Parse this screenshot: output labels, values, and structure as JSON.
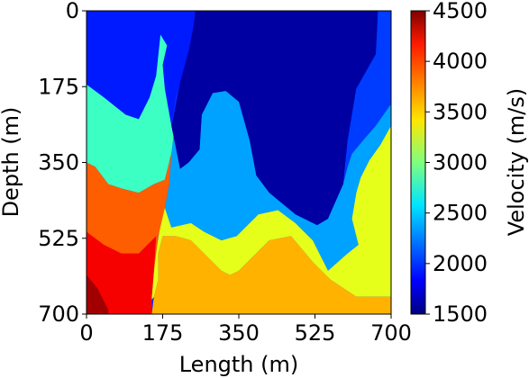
{
  "chart_data": {
    "type": "heatmap",
    "title": "",
    "xlabel": "Length (m)",
    "ylabel": "Depth (m)",
    "xlim": [
      0,
      700
    ],
    "ylim": [
      0,
      700
    ],
    "y_inverted": true,
    "xticks": [
      0,
      175,
      350,
      525,
      700
    ],
    "yticks": [
      0,
      175,
      350,
      525,
      700
    ],
    "xtick_labels": [
      "0",
      "175",
      "350",
      "525",
      "700"
    ],
    "ytick_labels": [
      "0",
      "175",
      "350",
      "525",
      "700"
    ],
    "colorbar": {
      "label": "Velocity (m/s)",
      "range": [
        1500,
        4500
      ],
      "ticks": [
        1500,
        2000,
        2500,
        3000,
        3500,
        4000,
        4500
      ],
      "tick_labels": [
        "1500",
        "2000",
        "2500",
        "3000",
        "3500",
        "4000",
        "4500"
      ],
      "colormap": "jet"
    },
    "layers": [
      {
        "velocity": 1600,
        "region": [
          [
            250,
            0
          ],
          [
            670,
            0
          ],
          [
            665,
            100
          ],
          [
            620,
            180
          ],
          [
            600,
            300
          ],
          [
            590,
            400
          ],
          [
            555,
            480
          ],
          [
            530,
            495
          ],
          [
            480,
            470
          ],
          [
            420,
            420
          ],
          [
            390,
            380
          ],
          [
            375,
            300
          ],
          [
            350,
            210
          ],
          [
            320,
            185
          ],
          [
            290,
            190
          ],
          [
            265,
            240
          ],
          [
            260,
            320
          ],
          [
            235,
            350
          ],
          [
            215,
            365
          ],
          [
            190,
            345
          ],
          [
            195,
            270
          ],
          [
            215,
            165
          ],
          [
            235,
            90
          ],
          [
            245,
            40
          ]
        ]
      },
      {
        "velocity": 1950,
        "region": [
          [
            0,
            0
          ],
          [
            250,
            0
          ],
          [
            245,
            40
          ],
          [
            235,
            90
          ],
          [
            215,
            165
          ],
          [
            205,
            200
          ],
          [
            195,
            265
          ],
          [
            180,
            180
          ],
          [
            175,
            125
          ],
          [
            185,
            80
          ],
          [
            170,
            55
          ],
          [
            160,
            150
          ],
          [
            145,
            200
          ],
          [
            120,
            250
          ],
          [
            90,
            240
          ],
          [
            40,
            200
          ],
          [
            0,
            170
          ]
        ]
      },
      {
        "velocity": 2050,
        "region": [
          [
            670,
            0
          ],
          [
            700,
            0
          ],
          [
            700,
            215
          ],
          [
            665,
            265
          ],
          [
            635,
            300
          ],
          [
            610,
            330
          ],
          [
            600,
            360
          ],
          [
            590,
            400
          ],
          [
            600,
            300
          ],
          [
            620,
            180
          ],
          [
            665,
            100
          ]
        ]
      },
      {
        "velocity": 2350,
        "region": [
          [
            200,
            290
          ],
          [
            215,
            365
          ],
          [
            235,
            350
          ],
          [
            260,
            320
          ],
          [
            265,
            240
          ],
          [
            290,
            190
          ],
          [
            320,
            185
          ],
          [
            350,
            210
          ],
          [
            375,
            300
          ],
          [
            390,
            380
          ],
          [
            420,
            420
          ],
          [
            480,
            470
          ],
          [
            530,
            495
          ],
          [
            555,
            480
          ],
          [
            590,
            400
          ],
          [
            600,
            360
          ],
          [
            610,
            330
          ],
          [
            635,
            300
          ],
          [
            665,
            265
          ],
          [
            700,
            215
          ],
          [
            700,
            265
          ],
          [
            675,
            310
          ],
          [
            650,
            345
          ],
          [
            630,
            385
          ],
          [
            620,
            420
          ],
          [
            610,
            480
          ],
          [
            625,
            540
          ],
          [
            600,
            560
          ],
          [
            555,
            600
          ],
          [
            520,
            530
          ],
          [
            480,
            490
          ],
          [
            440,
            460
          ],
          [
            395,
            470
          ],
          [
            345,
            520
          ],
          [
            310,
            530
          ],
          [
            270,
            510
          ],
          [
            240,
            490
          ],
          [
            195,
            500
          ],
          [
            180,
            455
          ],
          [
            190,
            400
          ],
          [
            195,
            330
          ]
        ]
      },
      {
        "velocity": 2800,
        "region": [
          [
            0,
            170
          ],
          [
            40,
            200
          ],
          [
            90,
            240
          ],
          [
            120,
            250
          ],
          [
            145,
            200
          ],
          [
            160,
            150
          ],
          [
            170,
            55
          ],
          [
            185,
            80
          ],
          [
            175,
            125
          ],
          [
            180,
            180
          ],
          [
            195,
            265
          ],
          [
            200,
            290
          ],
          [
            195,
            330
          ],
          [
            180,
            390
          ],
          [
            155,
            400
          ],
          [
            120,
            420
          ],
          [
            80,
            410
          ],
          [
            50,
            400
          ],
          [
            20,
            360
          ],
          [
            0,
            350
          ]
        ]
      },
      {
        "velocity": 3300,
        "region": [
          [
            180,
            455
          ],
          [
            195,
            500
          ],
          [
            240,
            490
          ],
          [
            270,
            510
          ],
          [
            310,
            530
          ],
          [
            345,
            520
          ],
          [
            395,
            470
          ],
          [
            440,
            460
          ],
          [
            480,
            490
          ],
          [
            520,
            530
          ],
          [
            555,
            600
          ],
          [
            600,
            560
          ],
          [
            625,
            540
          ],
          [
            610,
            480
          ],
          [
            620,
            420
          ],
          [
            630,
            385
          ],
          [
            650,
            345
          ],
          [
            675,
            310
          ],
          [
            700,
            265
          ],
          [
            700,
            660
          ],
          [
            620,
            660
          ],
          [
            560,
            620
          ],
          [
            520,
            580
          ],
          [
            470,
            520
          ],
          [
            420,
            530
          ],
          [
            380,
            570
          ],
          [
            350,
            600
          ],
          [
            330,
            610
          ],
          [
            310,
            600
          ],
          [
            270,
            560
          ],
          [
            240,
            530
          ],
          [
            205,
            520
          ],
          [
            175,
            520
          ],
          [
            165,
            560
          ],
          [
            165,
            620
          ],
          [
            155,
            660
          ],
          [
            140,
            680
          ],
          [
            180,
            430
          ]
        ]
      },
      {
        "velocity": 3600,
        "region": [
          [
            165,
            560
          ],
          [
            175,
            520
          ],
          [
            205,
            520
          ],
          [
            240,
            530
          ],
          [
            270,
            560
          ],
          [
            310,
            600
          ],
          [
            330,
            610
          ],
          [
            350,
            600
          ],
          [
            380,
            570
          ],
          [
            420,
            530
          ],
          [
            470,
            520
          ],
          [
            520,
            580
          ],
          [
            560,
            620
          ],
          [
            620,
            660
          ],
          [
            700,
            660
          ],
          [
            700,
            700
          ],
          [
            150,
            700
          ],
          [
            155,
            660
          ],
          [
            165,
            620
          ]
        ]
      },
      {
        "velocity": 3850,
        "region": [
          [
            0,
            350
          ],
          [
            20,
            360
          ],
          [
            50,
            400
          ],
          [
            80,
            410
          ],
          [
            120,
            420
          ],
          [
            155,
            400
          ],
          [
            180,
            390
          ],
          [
            195,
            330
          ],
          [
            190,
            400
          ],
          [
            180,
            455
          ],
          [
            165,
            520
          ],
          [
            155,
            600
          ],
          [
            150,
            660
          ],
          [
            150,
            700
          ],
          [
            0,
            700
          ]
        ]
      },
      {
        "velocity": 4150,
        "region": [
          [
            0,
            510
          ],
          [
            40,
            540
          ],
          [
            80,
            560
          ],
          [
            120,
            560
          ],
          [
            160,
            520
          ],
          [
            155,
            600
          ],
          [
            150,
            660
          ],
          [
            150,
            700
          ],
          [
            0,
            700
          ]
        ]
      },
      {
        "velocity": 4400,
        "region": [
          [
            0,
            610
          ],
          [
            25,
            640
          ],
          [
            50,
            690
          ],
          [
            50,
            700
          ],
          [
            0,
            700
          ]
        ]
      }
    ]
  }
}
